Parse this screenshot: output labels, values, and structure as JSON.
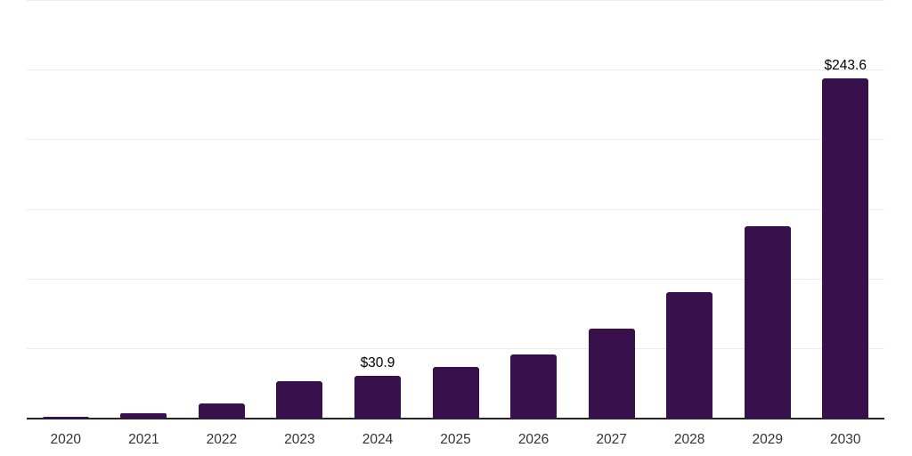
{
  "page": {
    "background_color": "#ffffff"
  },
  "chart_data": {
    "type": "bar",
    "title": "",
    "xlabel": "",
    "ylabel": "",
    "categories": [
      "2020",
      "2021",
      "2022",
      "2023",
      "2024",
      "2025",
      "2026",
      "2027",
      "2028",
      "2029",
      "2030"
    ],
    "values": [
      1.6,
      3.8,
      10.6,
      26.9,
      30.9,
      37.1,
      46.0,
      64.6,
      90.8,
      138.1,
      243.6
    ],
    "value_labels": [
      "",
      "",
      "",
      "",
      "$30.9",
      "",
      "",
      "",
      "",
      "",
      "$243.6"
    ],
    "ylim": [
      0,
      300
    ],
    "gridline_step": 50,
    "grid": true,
    "legend": false,
    "colors": {
      "bar": "#38114C",
      "gridline": "#ECECEC",
      "axis": "#262626",
      "value_label": "#000000",
      "tick_label": "#333333"
    }
  }
}
